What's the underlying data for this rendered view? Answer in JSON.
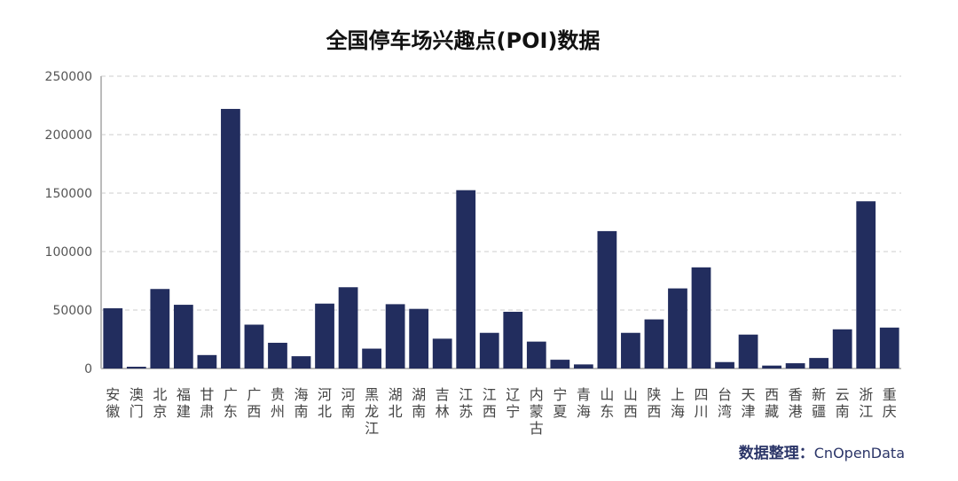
{
  "chart_data": {
    "type": "bar",
    "title": "全国停车场兴趣点(POI)数据",
    "xlabel": "",
    "ylabel": "",
    "ylim": [
      0,
      250000
    ],
    "yticks": [
      0,
      50000,
      100000,
      150000,
      200000,
      250000
    ],
    "ytick_labels": [
      "0",
      "50000",
      "100000",
      "150000",
      "200000",
      "250000"
    ],
    "grid": true,
    "bar_color": "#222d5e",
    "categories": [
      "安徽",
      "澳门",
      "北京",
      "福建",
      "甘肃",
      "广东",
      "广西",
      "贵州",
      "海南",
      "河北",
      "河南",
      "黑龙江",
      "湖北",
      "湖南",
      "吉林",
      "江苏",
      "江西",
      "辽宁",
      "内蒙古",
      "宁夏",
      "青海",
      "山东",
      "山西",
      "陕西",
      "上海",
      "四川",
      "台湾",
      "天津",
      "西藏",
      "香港",
      "新疆",
      "云南",
      "浙江",
      "重庆"
    ],
    "values": [
      51500,
      1500,
      68000,
      54500,
      11500,
      222000,
      37500,
      22000,
      10500,
      55500,
      69500,
      17000,
      55000,
      51000,
      25500,
      152500,
      30500,
      48500,
      23000,
      7500,
      3500,
      117500,
      30500,
      42000,
      68500,
      86500,
      5500,
      29000,
      2500,
      4500,
      9000,
      33500,
      143000,
      35000
    ]
  },
  "credit": {
    "label": "数据整理：",
    "brand": "CnOpenData"
  }
}
